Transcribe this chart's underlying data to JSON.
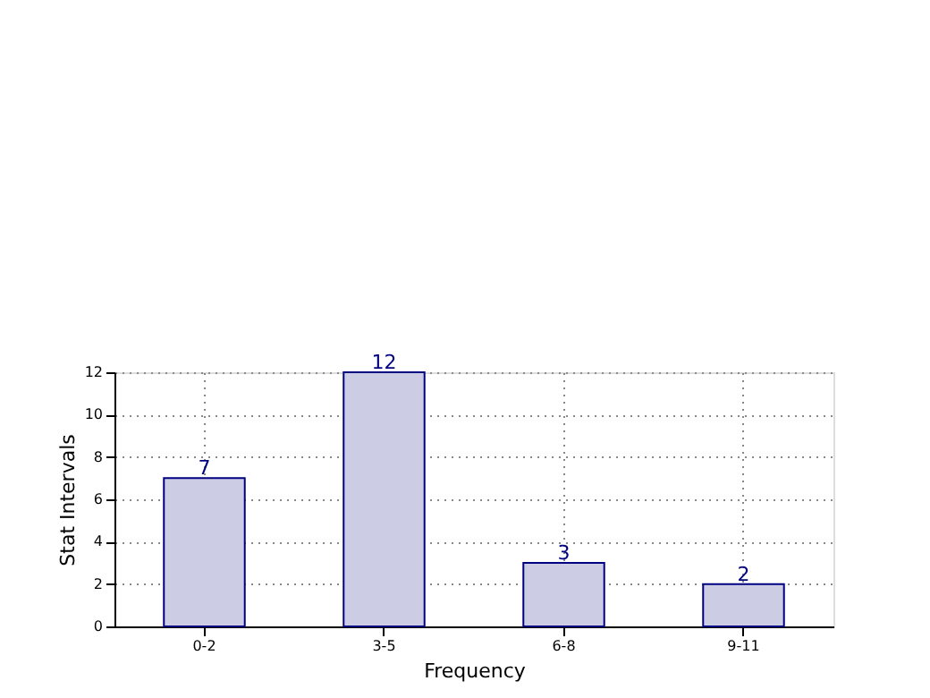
{
  "chart_data": {
    "type": "bar",
    "xlabel": "Frequency",
    "ylabel": "Stat Intervals",
    "categories": [
      "0-2",
      "3-5",
      "6-8",
      "9-11"
    ],
    "values": [
      7,
      12,
      3,
      2
    ],
    "color": "#cccce4",
    "ylim": [
      0,
      12
    ],
    "yticks": [
      0,
      2,
      4,
      6,
      8,
      10,
      12
    ],
    "grid": true,
    "data_labels": true
  }
}
